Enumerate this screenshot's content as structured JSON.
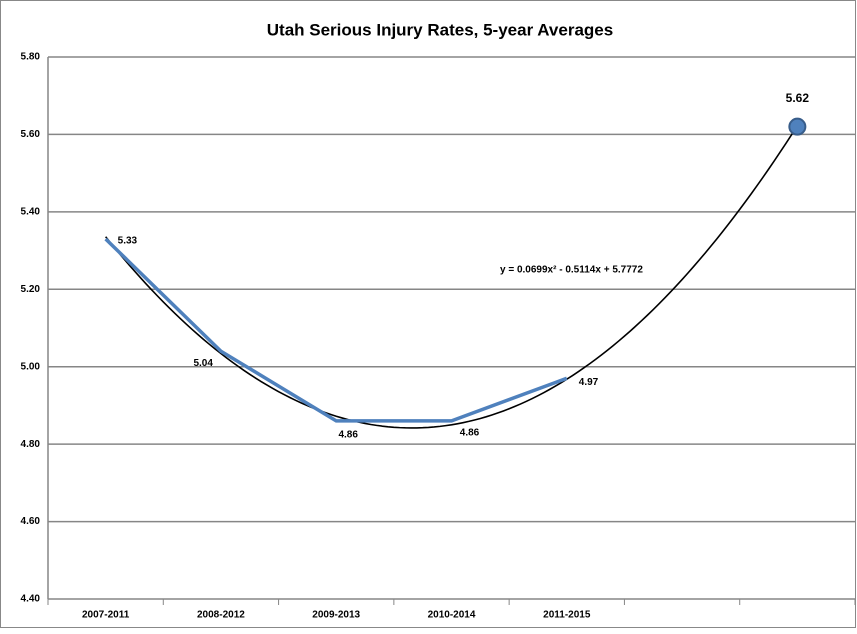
{
  "chart_data": {
    "type": "line",
    "title": "Utah Serious Injury Rates, 5-year Averages",
    "categories": [
      "2007-2011",
      "2008-2012",
      "2009-2013",
      "2010-2014",
      "2011-2015",
      null,
      null
    ],
    "series": [
      {
        "color": "#4f81bd",
        "values": [
          5.33,
          5.04,
          4.86,
          4.86,
          4.97,
          null,
          null
        ]
      },
      {
        "color": "#4f81bd",
        "marker": "circle",
        "values": [
          null,
          null,
          null,
          null,
          null,
          null,
          5.62
        ]
      }
    ],
    "trendline": {
      "type": "polynomial",
      "color": "#000000",
      "label": "y = 0.0699x² - 0.5114x + 5.7772",
      "coefficients": [
        0.0699,
        -0.5114,
        5.7772
      ]
    },
    "ylim": [
      4.4,
      5.8
    ],
    "yticks": [
      {
        "value": 4.4,
        "label": "4.40"
      },
      {
        "value": 4.6,
        "label": "4.60"
      },
      {
        "value": 4.8,
        "label": "4.80"
      },
      {
        "value": 5.0,
        "label": "5.00"
      },
      {
        "value": 5.2,
        "label": "5.20"
      },
      {
        "value": 5.4,
        "label": "5.40"
      },
      {
        "value": 5.6,
        "label": "5.60"
      },
      {
        "value": 5.8,
        "label": "5.80"
      }
    ],
    "grid": true
  }
}
